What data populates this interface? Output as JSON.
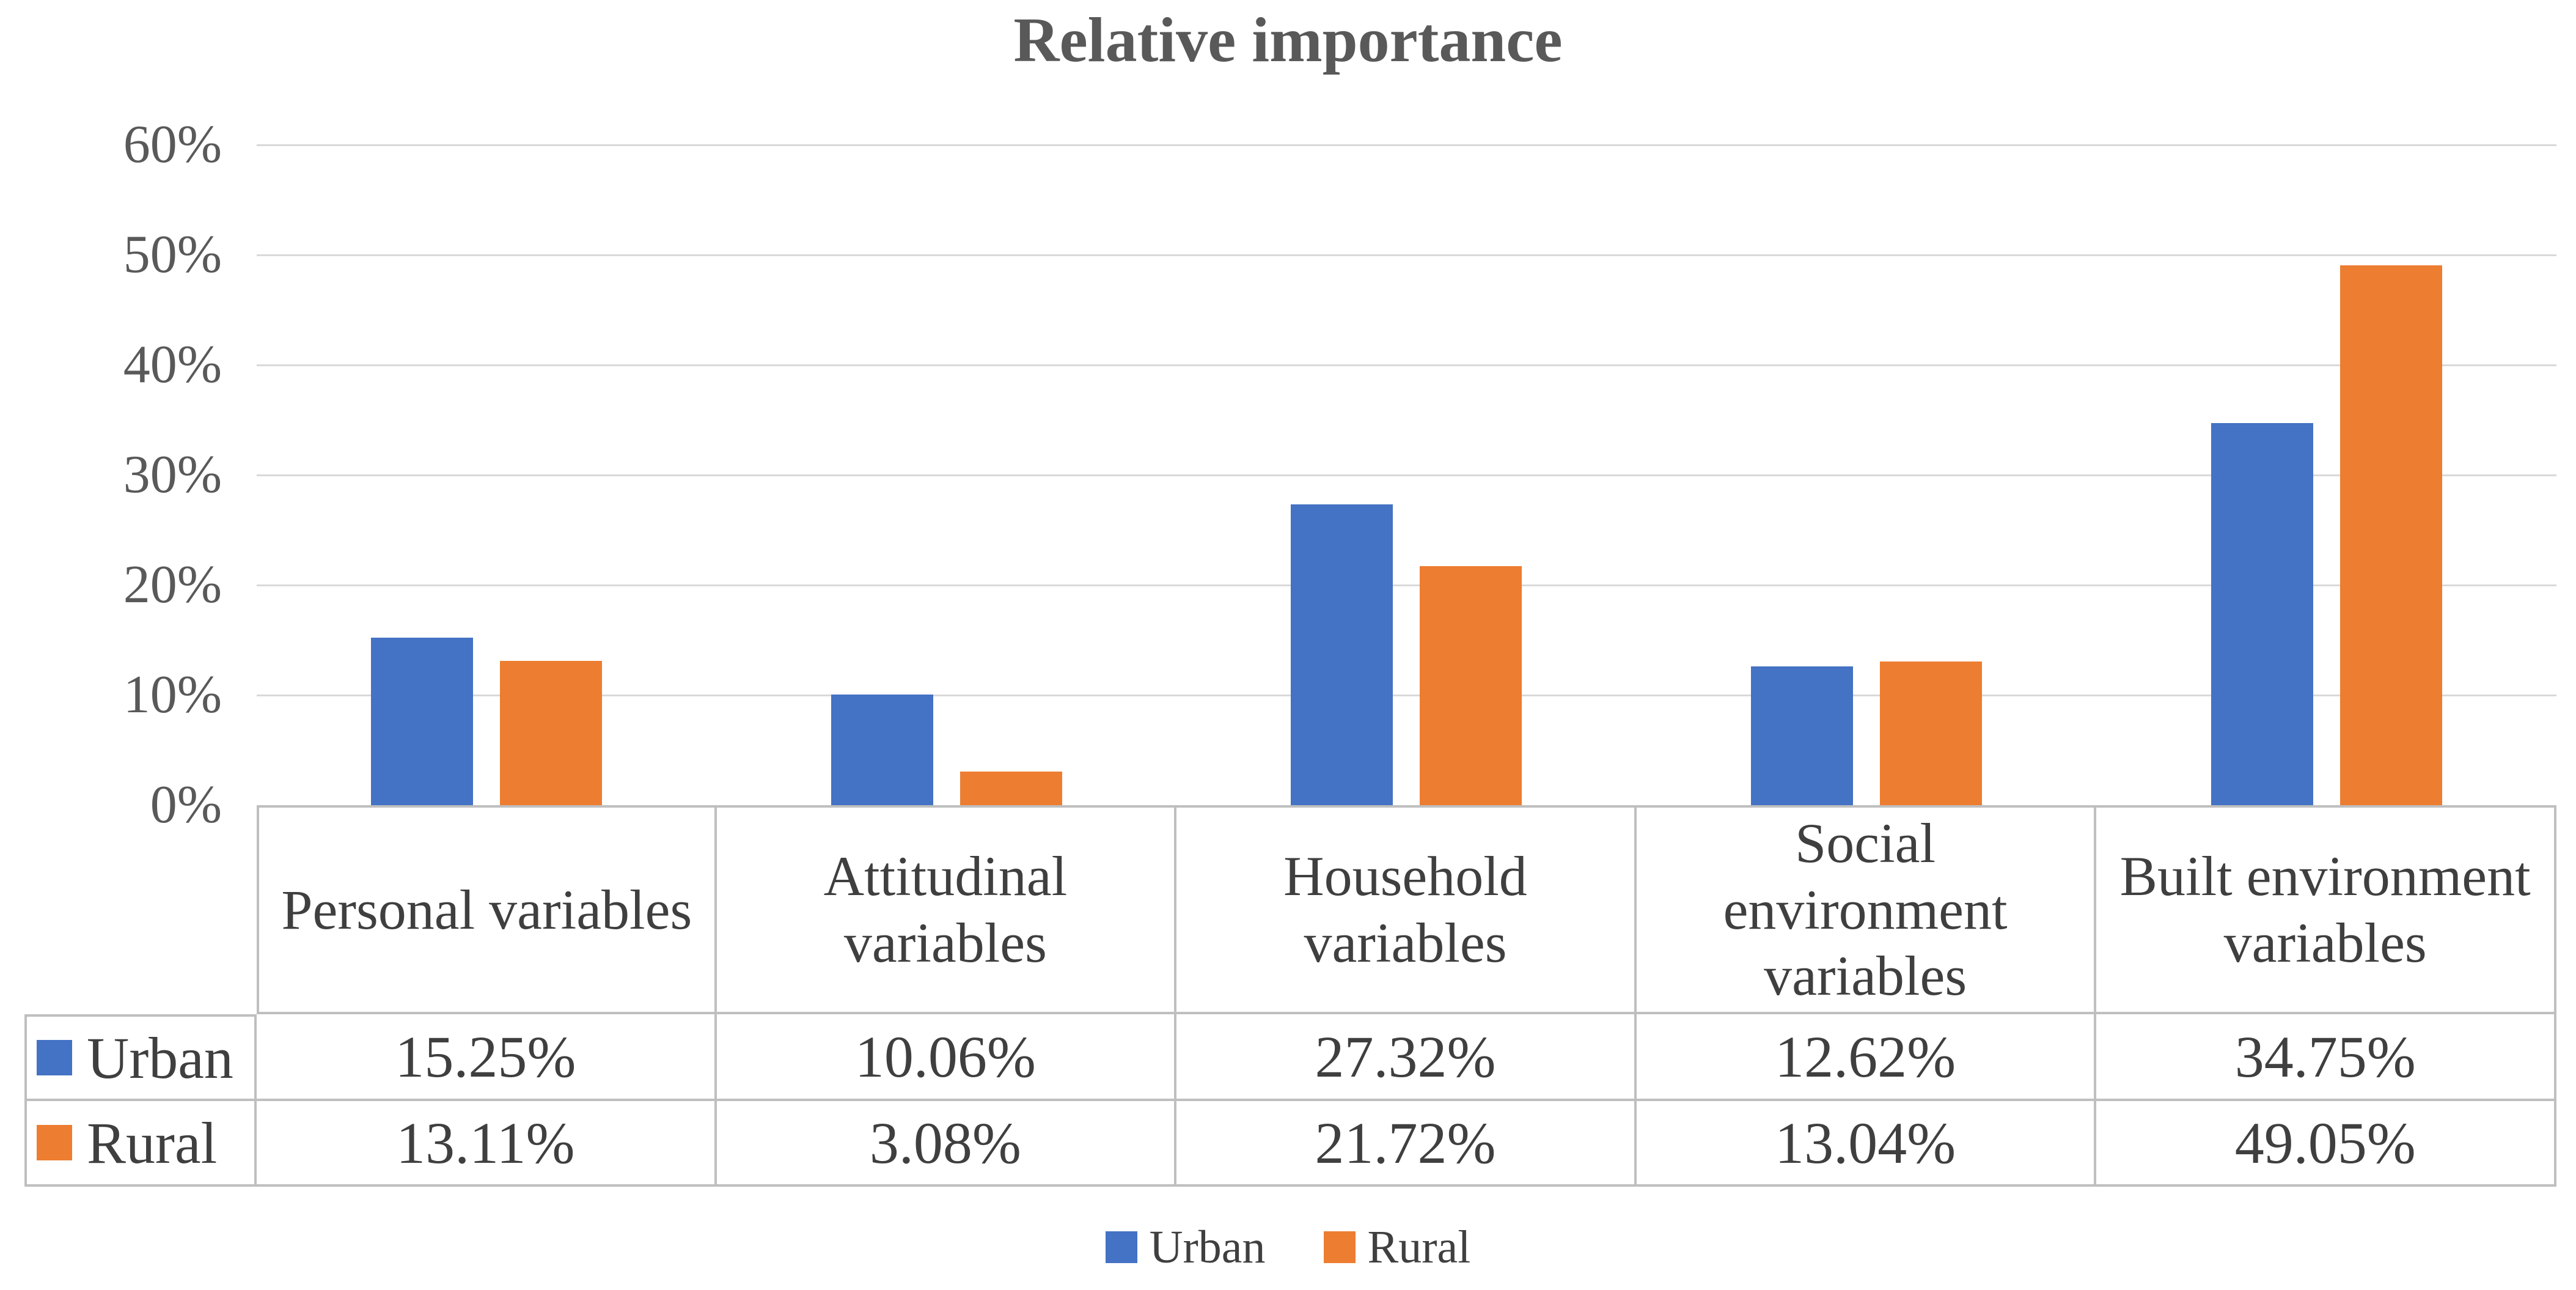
{
  "title": "Relative importance",
  "colors": {
    "urban": "#4472C4",
    "rural": "#ED7D31",
    "gridline": "#D9D9D9",
    "table_border": "#BFBFBF",
    "axis_text": "#595959",
    "table_text": "#3F3F3F"
  },
  "chart_data": {
    "type": "bar",
    "title": "Relative importance",
    "categories": [
      "Personal variables",
      "Attitudinal variables",
      "Household variables",
      "Social environment variables",
      "Built environment variables"
    ],
    "series": [
      {
        "name": "Urban",
        "color": "#4472C4",
        "values": [
          15.25,
          10.06,
          27.32,
          12.62,
          34.75
        ],
        "labels": [
          "15.25%",
          "10.06%",
          "27.32%",
          "12.62%",
          "34.75%"
        ]
      },
      {
        "name": "Rural",
        "color": "#ED7D31",
        "values": [
          13.11,
          3.08,
          21.72,
          13.04,
          49.05
        ],
        "labels": [
          "13.11%",
          "3.08%",
          "21.72%",
          "13.04%",
          "49.05%"
        ]
      }
    ],
    "xlabel": "",
    "ylabel": "",
    "ylim": [
      0,
      60
    ],
    "yticks": [
      "0%",
      "10%",
      "20%",
      "30%",
      "40%",
      "50%",
      "60%"
    ],
    "grid": true,
    "legend_position": "bottom",
    "data_table_shown": true
  },
  "legend": {
    "items": [
      {
        "label": "Urban",
        "color": "#4472C4"
      },
      {
        "label": "Rural",
        "color": "#ED7D31"
      }
    ]
  }
}
